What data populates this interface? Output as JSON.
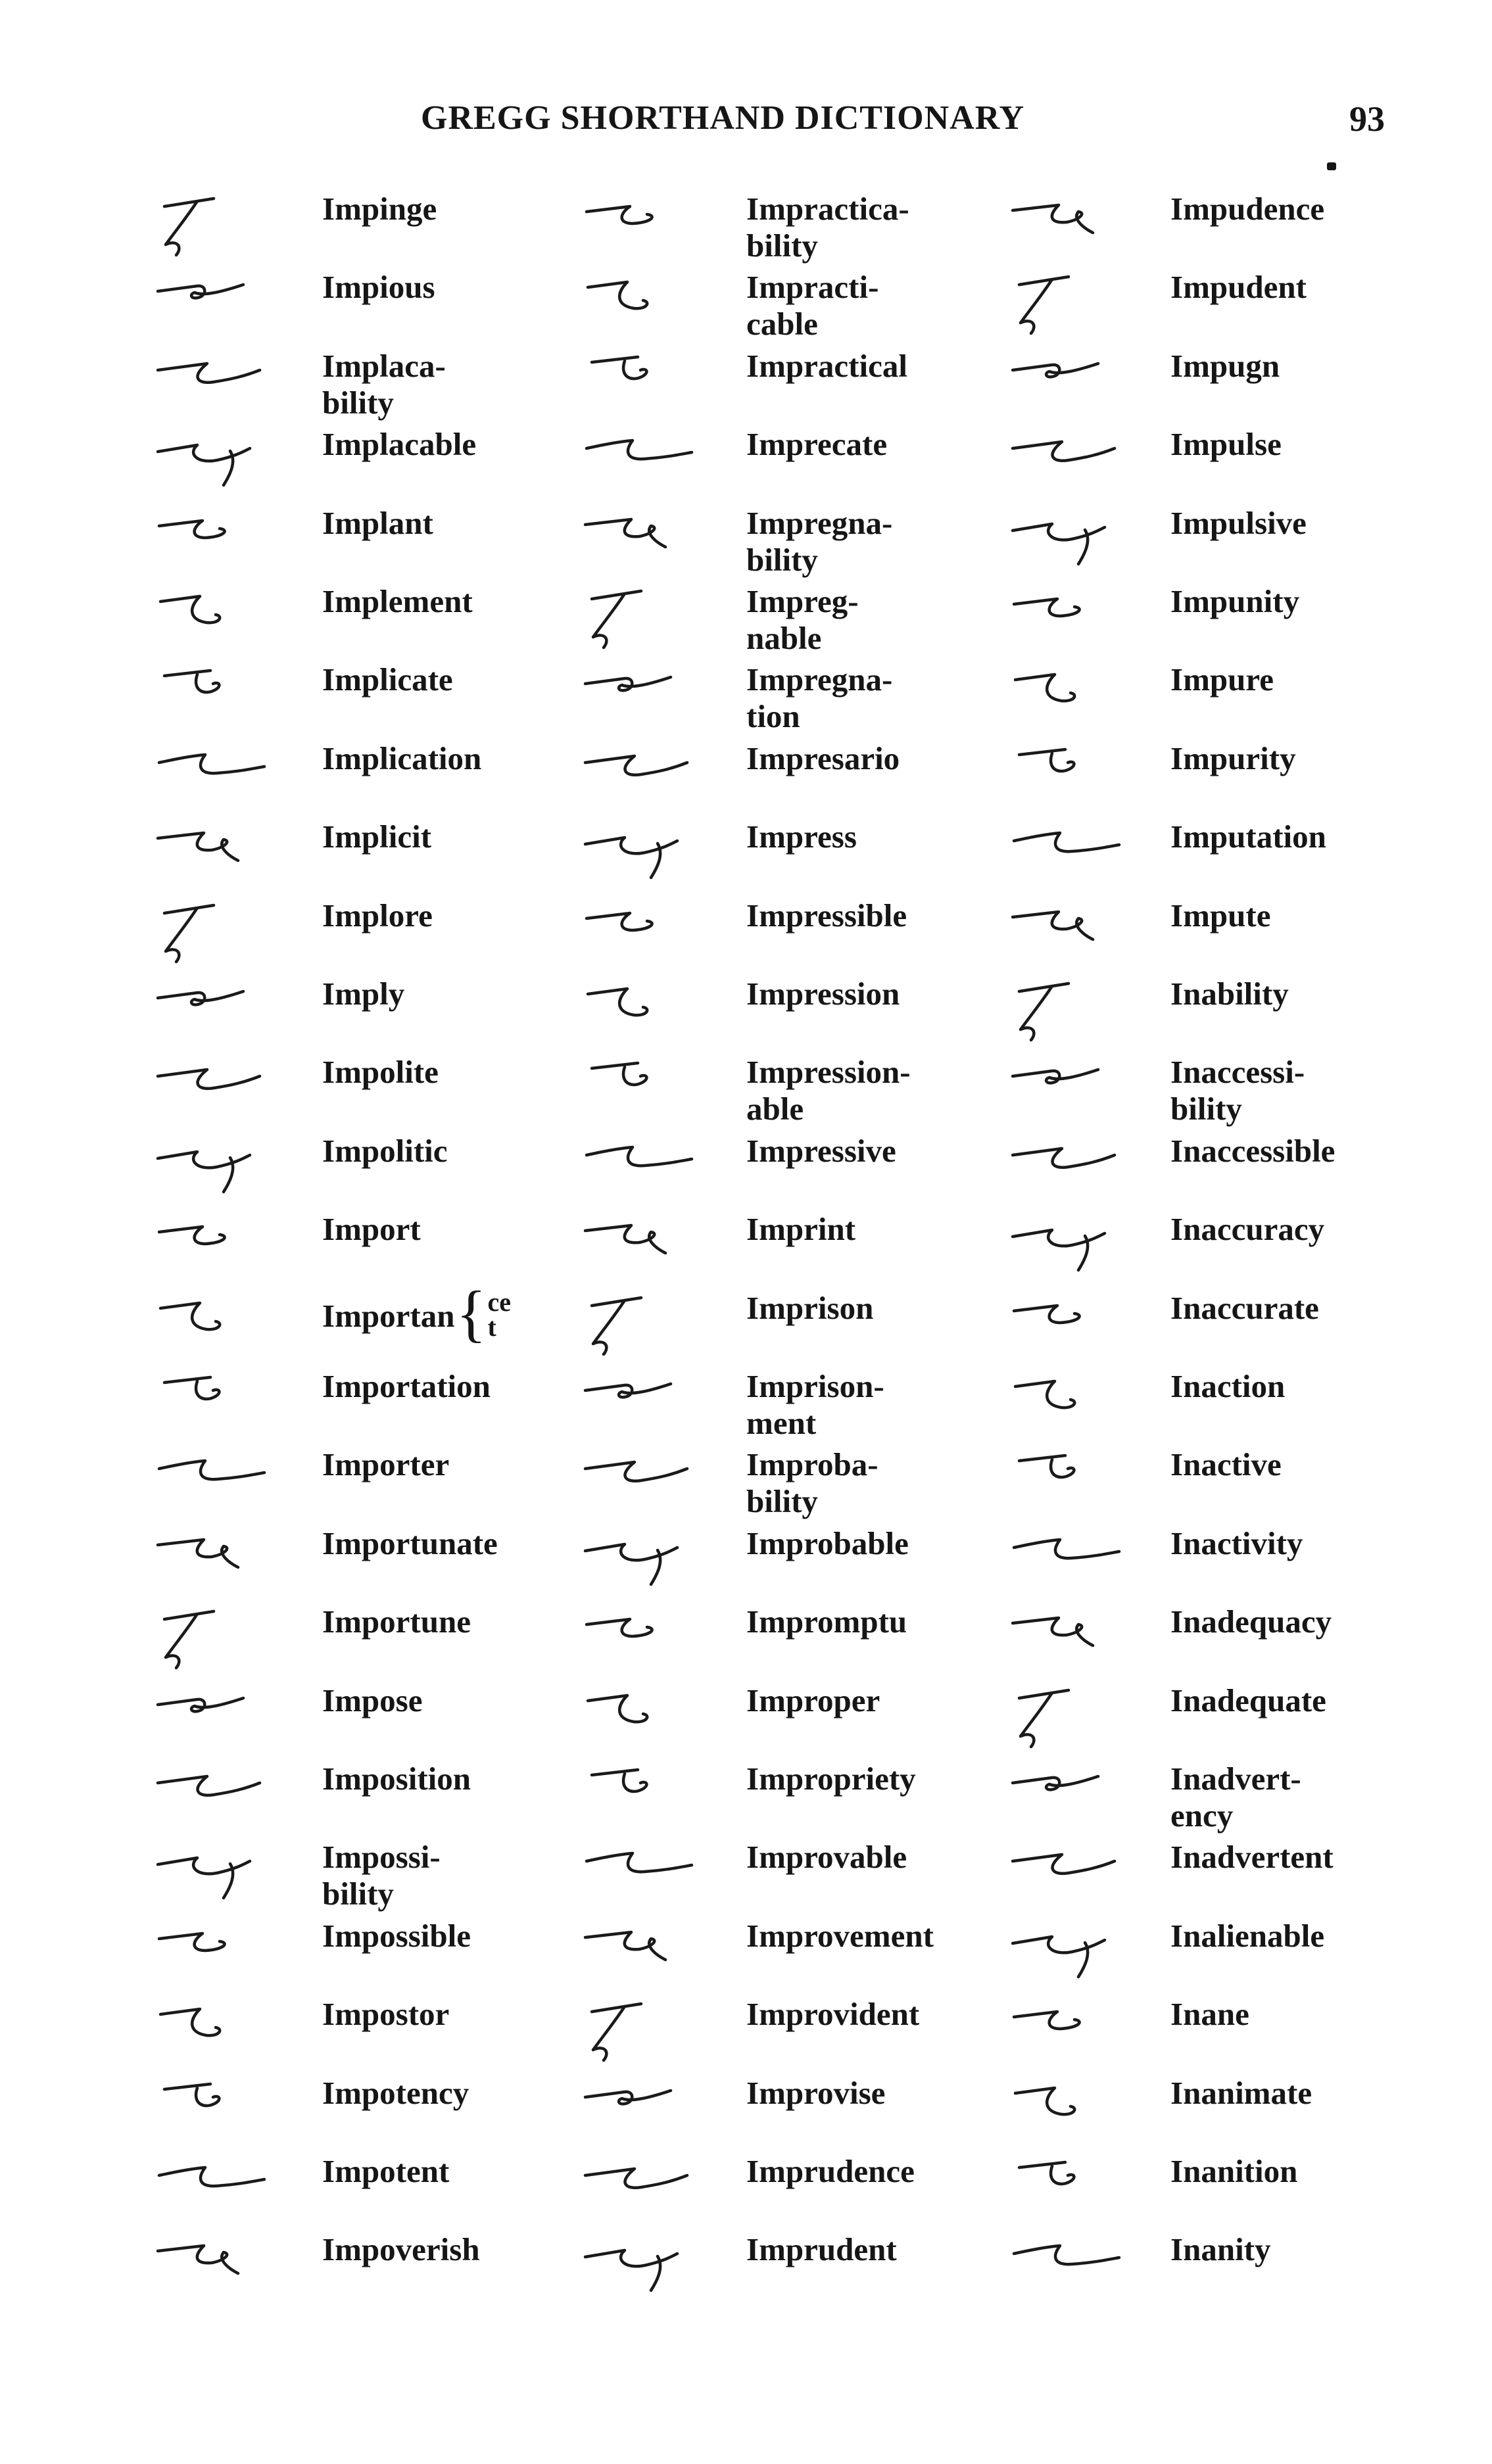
{
  "header": {
    "title": "GREGG SHORTHAND DICTIONARY",
    "page_number": "93"
  },
  "columns": [
    {
      "entries": [
        {
          "word": "Impinge"
        },
        {
          "word": "Impious"
        },
        {
          "word": "Implaca-\n  bility"
        },
        {
          "word": "Implacable"
        },
        {
          "word": "Implant"
        },
        {
          "word": "Implement"
        },
        {
          "word": "Implicate"
        },
        {
          "word": "Implication"
        },
        {
          "word": "Implicit"
        },
        {
          "word": "Implore"
        },
        {
          "word": "Imply"
        },
        {
          "word": "Impolite"
        },
        {
          "word": "Impolitic"
        },
        {
          "word": "Import"
        },
        {
          "word": "Importan",
          "suffixes": [
            "ce",
            "t"
          ]
        },
        {
          "word": "Importation"
        },
        {
          "word": "Importer"
        },
        {
          "word": "Importunate"
        },
        {
          "word": "Importune"
        },
        {
          "word": "Impose"
        },
        {
          "word": "Imposition"
        },
        {
          "word": "Impossi-\n  bility"
        },
        {
          "word": "Impossible"
        },
        {
          "word": "Impostor"
        },
        {
          "word": "Impotency"
        },
        {
          "word": "Impotent"
        },
        {
          "word": "Impoverish"
        }
      ]
    },
    {
      "entries": [
        {
          "word": "Impractica-\n  bility"
        },
        {
          "word": "Impracti-\n  cable"
        },
        {
          "word": "Impractical"
        },
        {
          "word": "Imprecate"
        },
        {
          "word": "Impregna-\n  bility"
        },
        {
          "word": "Impreg-\n  nable"
        },
        {
          "word": "Impregna-\n  tion"
        },
        {
          "word": "Impresario"
        },
        {
          "word": "Impress"
        },
        {
          "word": "Impressible"
        },
        {
          "word": "Impression"
        },
        {
          "word": "Impression-\n  able"
        },
        {
          "word": "Impressive"
        },
        {
          "word": "Imprint"
        },
        {
          "word": "Imprison"
        },
        {
          "word": "Imprison-\n  ment"
        },
        {
          "word": "Improba-\n  bility"
        },
        {
          "word": "Improbable"
        },
        {
          "word": "Impromptu"
        },
        {
          "word": "Improper"
        },
        {
          "word": "Impropriety"
        },
        {
          "word": "Improvable"
        },
        {
          "word": "Improvement"
        },
        {
          "word": "Improvident"
        },
        {
          "word": "Improvise"
        },
        {
          "word": "Imprudence"
        },
        {
          "word": "Imprudent"
        }
      ]
    },
    {
      "entries": [
        {
          "word": "Impudence"
        },
        {
          "word": "Impudent"
        },
        {
          "word": "Impugn"
        },
        {
          "word": "Impulse"
        },
        {
          "word": "Impulsive"
        },
        {
          "word": "Impunity"
        },
        {
          "word": "Impure"
        },
        {
          "word": "Impurity"
        },
        {
          "word": "Imputation"
        },
        {
          "word": "Impute"
        },
        {
          "word": "Inability"
        },
        {
          "word": "Inaccessi-\n  bility"
        },
        {
          "word": "Inaccessible"
        },
        {
          "word": "Inaccuracy"
        },
        {
          "word": "Inaccurate"
        },
        {
          "word": "Inaction"
        },
        {
          "word": "Inactive"
        },
        {
          "word": "Inactivity"
        },
        {
          "word": "Inadequacy"
        },
        {
          "word": "Inadequate"
        },
        {
          "word": "Inadvert-\n  ency"
        },
        {
          "word": "Inadvertent"
        },
        {
          "word": "Inalienable"
        },
        {
          "word": "Inane"
        },
        {
          "word": "Inanimate"
        },
        {
          "word": "Inanition"
        },
        {
          "word": "Inanity"
        }
      ]
    }
  ]
}
